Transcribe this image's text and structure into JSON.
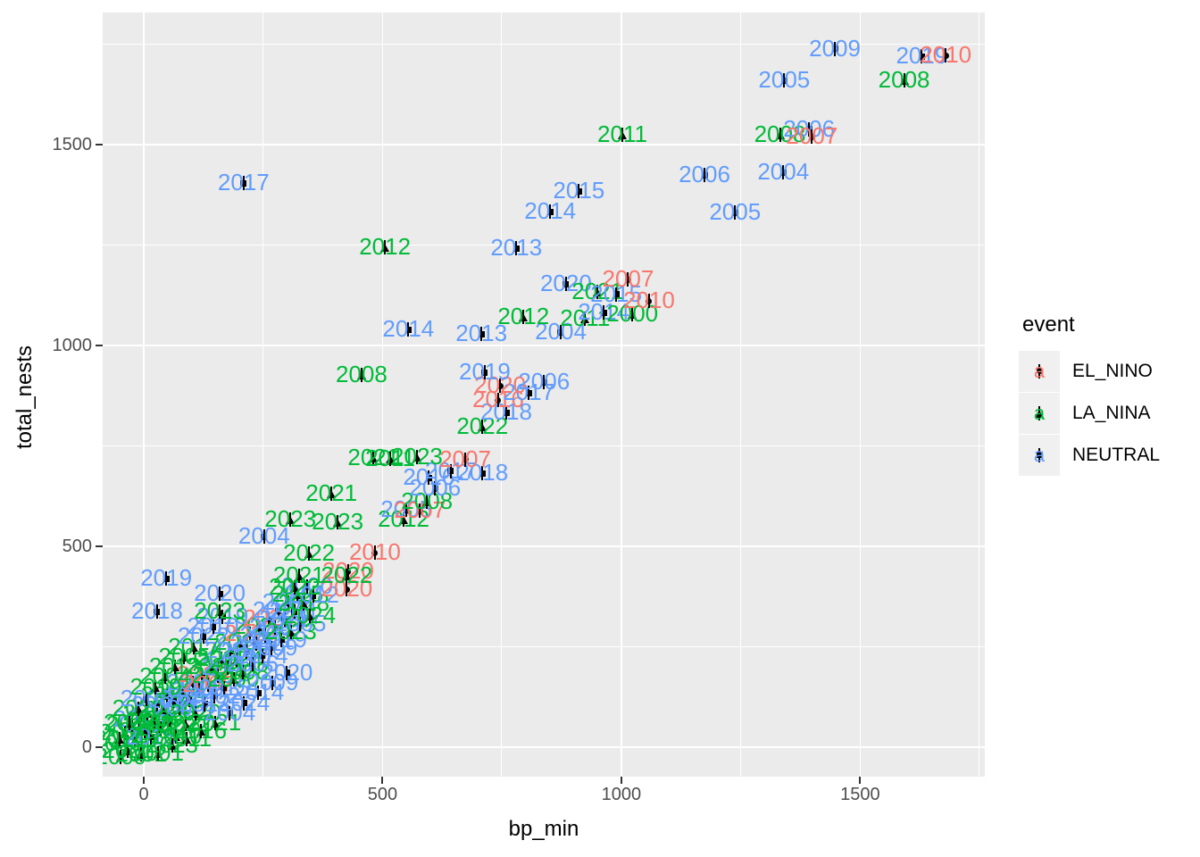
{
  "axes": {
    "x_label": "bp_min",
    "y_label": "total_nests",
    "x_tick_labels": [
      "0",
      "500",
      "1000",
      "1500"
    ],
    "y_tick_labels": [
      "0",
      "500",
      "1000",
      "1500"
    ]
  },
  "legend": {
    "title": "event",
    "key_glyph": "a",
    "items": [
      {
        "label": "EL_NINO",
        "color": "#F8766D",
        "shape": "circle"
      },
      {
        "label": "LA_NINA",
        "color": "#00BA38",
        "shape": "triangle"
      },
      {
        "label": "NEUTRAL",
        "color": "#619CFF",
        "shape": "square"
      }
    ]
  },
  "chart_data": {
    "type": "scatter",
    "title": "",
    "xlabel": "bp_min",
    "ylabel": "total_nests",
    "x_range": [
      -86,
      1761
    ],
    "y_range": [
      -73,
      1829
    ],
    "x_ticks": [
      0,
      500,
      1000,
      1500
    ],
    "x_minor_ticks": [
      250,
      750,
      1250,
      1750
    ],
    "y_ticks": [
      0,
      500,
      1000,
      1500
    ],
    "y_minor_ticks": [
      250,
      750,
      1250,
      1750
    ],
    "grid": true,
    "legend_position": "right",
    "event_colors": {
      "EL_NINO": "#F8766D",
      "LA_NINA": "#00BA38",
      "NEUTRAL": "#619CFF"
    },
    "event_shapes": {
      "EL_NINO": "circle",
      "LA_NINA": "triangle",
      "NEUTRAL": "square"
    },
    "points": [
      {
        "label": "2003",
        "event": "LA_NINA",
        "x": -55,
        "y": 10
      },
      {
        "label": "2009",
        "event": "LA_NINA",
        "x": -48,
        "y": -25
      },
      {
        "label": "2016",
        "event": "LA_NINA",
        "x": -40,
        "y": 35
      },
      {
        "label": "2021",
        "event": "LA_NINA",
        "x": -33,
        "y": -8
      },
      {
        "label": "2013",
        "event": "LA_NINA",
        "x": -25,
        "y": 55
      },
      {
        "label": "2007",
        "event": "LA_NINA",
        "x": -18,
        "y": 18
      },
      {
        "label": "2019",
        "event": "NEUTRAL",
        "x": -10,
        "y": 70
      },
      {
        "label": "2002",
        "event": "LA_NINA",
        "x": -5,
        "y": -18
      },
      {
        "label": "2023",
        "event": "LA_NINA",
        "x": 2,
        "y": 40
      },
      {
        "label": "2011",
        "event": "LA_NINA",
        "x": 8,
        "y": 85
      },
      {
        "label": "2015",
        "event": "NEUTRAL",
        "x": 15,
        "y": 25
      },
      {
        "label": "2005",
        "event": "LA_NINA",
        "x": 22,
        "y": 65
      },
      {
        "label": "2018",
        "event": "NEUTRAL",
        "x": 28,
        "y": 105
      },
      {
        "label": "2000",
        "event": "LA_NINA",
        "x": 35,
        "y": 48
      },
      {
        "label": "2024",
        "event": "LA_NINA",
        "x": 42,
        "y": 92
      },
      {
        "label": "2012",
        "event": "LA_NINA",
        "x": 48,
        "y": 130
      },
      {
        "label": "2008",
        "event": "LA_NINA",
        "x": 55,
        "y": 70
      },
      {
        "label": "2017",
        "event": "NEUTRAL",
        "x": 62,
        "y": 115
      },
      {
        "label": "2010",
        "event": "LA_NINA",
        "x": 68,
        "y": 28
      },
      {
        "label": "2006",
        "event": "NEUTRAL",
        "x": 75,
        "y": 95
      },
      {
        "label": "2001",
        "event": "LA_NINA",
        "x": 82,
        "y": 140
      },
      {
        "label": "2022",
        "event": "LA_NINA",
        "x": 88,
        "y": 58
      },
      {
        "label": "2014",
        "event": "NEUTRAL",
        "x": 95,
        "y": 118
      },
      {
        "label": "2003",
        "event": "NEUTRAL",
        "x": 102,
        "y": 160
      },
      {
        "label": "2020",
        "event": "LA_NINA",
        "x": 108,
        "y": 85
      },
      {
        "label": "2009",
        "event": "NEUTRAL",
        "x": 115,
        "y": 145
      },
      {
        "label": "2016",
        "event": "EL_NINO",
        "x": 122,
        "y": 180
      },
      {
        "label": "2013",
        "event": "NEUTRAL",
        "x": 128,
        "y": 108
      },
      {
        "label": "2007",
        "event": "EL_NINO",
        "x": 135,
        "y": 155
      },
      {
        "label": "2021",
        "event": "LA_NINA",
        "x": 142,
        "y": 200
      },
      {
        "label": "2002",
        "event": "NEUTRAL",
        "x": 148,
        "y": 128
      },
      {
        "label": "2023",
        "event": "LA_NINA",
        "x": 155,
        "y": 178
      },
      {
        "label": "2011",
        "event": "LA_NINA",
        "x": 162,
        "y": 220
      },
      {
        "label": "2015",
        "event": "NEUTRAL",
        "x": 168,
        "y": 148
      },
      {
        "label": "2005",
        "event": "NEUTRAL",
        "x": 175,
        "y": 198
      },
      {
        "label": "2018",
        "event": "NEUTRAL",
        "x": 182,
        "y": 240
      },
      {
        "label": "2000",
        "event": "LA_NINA",
        "x": 188,
        "y": 170
      },
      {
        "label": "2024",
        "event": "LA_NINA",
        "x": 195,
        "y": 218
      },
      {
        "label": "2012",
        "event": "LA_NINA",
        "x": 202,
        "y": 260
      },
      {
        "label": "2008",
        "event": "LA_NINA",
        "x": 208,
        "y": 188
      },
      {
        "label": "2017",
        "event": "NEUTRAL",
        "x": 215,
        "y": 238
      },
      {
        "label": "2010",
        "event": "EL_NINO",
        "x": 222,
        "y": 282
      },
      {
        "label": "2006",
        "event": "NEUTRAL",
        "x": 228,
        "y": 208
      },
      {
        "label": "2001",
        "event": "NEUTRAL",
        "x": 235,
        "y": 258
      },
      {
        "label": "2022",
        "event": "LA_NINA",
        "x": 242,
        "y": 300
      },
      {
        "label": "2014",
        "event": "NEUTRAL",
        "x": 248,
        "y": 228
      },
      {
        "label": "2003",
        "event": "NEUTRAL",
        "x": 255,
        "y": 278
      },
      {
        "label": "2020",
        "event": "EL_NINO",
        "x": 262,
        "y": 320
      },
      {
        "label": "2009",
        "event": "NEUTRAL",
        "x": 268,
        "y": 248
      },
      {
        "label": "2016",
        "event": "NEUTRAL",
        "x": 275,
        "y": 298
      },
      {
        "label": "2013",
        "event": "NEUTRAL",
        "x": 282,
        "y": 340
      },
      {
        "label": "2019",
        "event": "NEUTRAL",
        "x": 288,
        "y": 268
      },
      {
        "label": "2021",
        "event": "NEUTRAL",
        "x": 295,
        "y": 318
      },
      {
        "label": "2002",
        "event": "NEUTRAL",
        "x": 302,
        "y": 360
      },
      {
        "label": "2023",
        "event": "LA_NINA",
        "x": 308,
        "y": 288
      },
      {
        "label": "2011",
        "event": "NEUTRAL",
        "x": 315,
        "y": 338
      },
      {
        "label": "2015",
        "event": "LA_NINA",
        "x": 322,
        "y": 380
      },
      {
        "label": "2005",
        "event": "NEUTRAL",
        "x": 328,
        "y": 308
      },
      {
        "label": "2018",
        "event": "LA_NINA",
        "x": 335,
        "y": 358
      },
      {
        "label": "2000",
        "event": "NEUTRAL",
        "x": 342,
        "y": 400
      },
      {
        "label": "2024",
        "event": "LA_NINA",
        "x": 348,
        "y": 328
      },
      {
        "label": "2012",
        "event": "NEUTRAL",
        "x": 355,
        "y": 378
      },
      {
        "label": "2014",
        "event": "LA_NINA",
        "x": -50,
        "y": 20
      },
      {
        "label": "2006",
        "event": "LA_NINA",
        "x": -30,
        "y": 60
      },
      {
        "label": "2020",
        "event": "LA_NINA",
        "x": -12,
        "y": 95
      },
      {
        "label": "2008",
        "event": "NEUTRAL",
        "x": 5,
        "y": 120
      },
      {
        "label": "2019",
        "event": "LA_NINA",
        "x": 25,
        "y": 150
      },
      {
        "label": "2004",
        "event": "LA_NINA",
        "x": 45,
        "y": 175
      },
      {
        "label": "2013",
        "event": "LA_NINA",
        "x": 65,
        "y": 200
      },
      {
        "label": "2005",
        "event": "LA_NINA",
        "x": 85,
        "y": 225
      },
      {
        "label": "2017",
        "event": "LA_NINA",
        "x": 105,
        "y": 250
      },
      {
        "label": "2022",
        "event": "NEUTRAL",
        "x": 125,
        "y": 275
      },
      {
        "label": "2010",
        "event": "NEUTRAL",
        "x": 145,
        "y": 300
      },
      {
        "label": "2019",
        "event": "NEUTRAL",
        "x": 165,
        "y": 325
      },
      {
        "label": "2001",
        "event": "LA_NINA",
        "x": 30,
        "y": -15
      },
      {
        "label": "2023",
        "event": "LA_NINA",
        "x": 60,
        "y": 5
      },
      {
        "label": "2011",
        "event": "LA_NINA",
        "x": 90,
        "y": 20
      },
      {
        "label": "2016",
        "event": "LA_NINA",
        "x": 120,
        "y": 40
      },
      {
        "label": "2021",
        "event": "LA_NINA",
        "x": 150,
        "y": 60
      },
      {
        "label": "2004",
        "event": "NEUTRAL",
        "x": 180,
        "y": 85
      },
      {
        "label": "2024",
        "event": "NEUTRAL",
        "x": 210,
        "y": 110
      },
      {
        "label": "2014",
        "event": "NEUTRAL",
        "x": 240,
        "y": 135
      },
      {
        "label": "2009",
        "event": "NEUTRAL",
        "x": 270,
        "y": 160
      },
      {
        "label": "2020",
        "event": "NEUTRAL",
        "x": 300,
        "y": 185
      },
      {
        "label": "2019",
        "event": "NEUTRAL",
        "x": 47,
        "y": 420
      },
      {
        "label": "2018",
        "event": "NEUTRAL",
        "x": 28,
        "y": 338
      },
      {
        "label": "2023",
        "event": "LA_NINA",
        "x": 159,
        "y": 338
      },
      {
        "label": "2020",
        "event": "NEUTRAL",
        "x": 159,
        "y": 382
      },
      {
        "label": "2022",
        "event": "LA_NINA",
        "x": 316,
        "y": 398
      },
      {
        "label": "2020",
        "event": "EL_NINO",
        "x": 425,
        "y": 393
      },
      {
        "label": "2021",
        "event": "LA_NINA",
        "x": 325,
        "y": 427
      },
      {
        "label": "2020",
        "event": "EL_NINO",
        "x": 428,
        "y": 438
      },
      {
        "label": "2023",
        "event": "LA_NINA",
        "x": 307,
        "y": 567
      },
      {
        "label": "2004",
        "event": "NEUTRAL",
        "x": 252,
        "y": 524
      },
      {
        "label": "2022",
        "event": "LA_NINA",
        "x": 346,
        "y": 482
      },
      {
        "label": "2010",
        "event": "EL_NINO",
        "x": 484,
        "y": 484
      },
      {
        "label": "2022",
        "event": "LA_NINA",
        "x": 425,
        "y": 427
      },
      {
        "label": "2021",
        "event": "LA_NINA",
        "x": 393,
        "y": 631
      },
      {
        "label": "2023",
        "event": "LA_NINA",
        "x": 406,
        "y": 560
      },
      {
        "label": "2012",
        "event": "LA_NINA",
        "x": 544,
        "y": 567
      },
      {
        "label": "2005",
        "event": "NEUTRAL",
        "x": 550,
        "y": 591
      },
      {
        "label": "2007",
        "event": "EL_NINO",
        "x": 578,
        "y": 589
      },
      {
        "label": "2008",
        "event": "LA_NINA",
        "x": 593,
        "y": 611
      },
      {
        "label": "2006",
        "event": "NEUTRAL",
        "x": 610,
        "y": 644
      },
      {
        "label": "2016",
        "event": "NEUTRAL",
        "x": 597,
        "y": 671
      },
      {
        "label": "2017",
        "event": "NEUTRAL",
        "x": 643,
        "y": 687
      },
      {
        "label": "2018",
        "event": "NEUTRAL",
        "x": 709,
        "y": 682
      },
      {
        "label": "2021",
        "event": "LA_NINA",
        "x": 481,
        "y": 720
      },
      {
        "label": "2011",
        "event": "LA_NINA",
        "x": 516,
        "y": 718
      },
      {
        "label": "2023",
        "event": "LA_NINA",
        "x": 572,
        "y": 722
      },
      {
        "label": "2007",
        "event": "EL_NINO",
        "x": 673,
        "y": 716
      },
      {
        "label": "2022",
        "event": "LA_NINA",
        "x": 709,
        "y": 798
      },
      {
        "label": "2018",
        "event": "NEUTRAL",
        "x": 759,
        "y": 833
      },
      {
        "label": "2016",
        "event": "EL_NINO",
        "x": 742,
        "y": 864
      },
      {
        "label": "2017",
        "event": "NEUTRAL",
        "x": 806,
        "y": 882
      },
      {
        "label": "2020",
        "event": "EL_NINO",
        "x": 746,
        "y": 900
      },
      {
        "label": "2006",
        "event": "NEUTRAL",
        "x": 838,
        "y": 909
      },
      {
        "label": "2019",
        "event": "NEUTRAL",
        "x": 714,
        "y": 933
      },
      {
        "label": "2008",
        "event": "LA_NINA",
        "x": 456,
        "y": 927
      },
      {
        "label": "2014",
        "event": "NEUTRAL",
        "x": 554,
        "y": 1040
      },
      {
        "label": "2013",
        "event": "NEUTRAL",
        "x": 707,
        "y": 1029
      },
      {
        "label": "2004",
        "event": "NEUTRAL",
        "x": 873,
        "y": 1033
      },
      {
        "label": "2011",
        "event": "LA_NINA",
        "x": 924,
        "y": 1067
      },
      {
        "label": "2014",
        "event": "NEUTRAL",
        "x": 963,
        "y": 1082
      },
      {
        "label": "2000",
        "event": "LA_NINA",
        "x": 1023,
        "y": 1078
      },
      {
        "label": "2012",
        "event": "LA_NINA",
        "x": 795,
        "y": 1071
      },
      {
        "label": "2020",
        "event": "NEUTRAL",
        "x": 884,
        "y": 1153
      },
      {
        "label": "2021",
        "event": "LA_NINA",
        "x": 950,
        "y": 1133
      },
      {
        "label": "2015",
        "event": "NEUTRAL",
        "x": 989,
        "y": 1127
      },
      {
        "label": "2007",
        "event": "EL_NINO",
        "x": 1014,
        "y": 1164
      },
      {
        "label": "2010",
        "event": "EL_NINO",
        "x": 1058,
        "y": 1111
      },
      {
        "label": "2012",
        "event": "LA_NINA",
        "x": 505,
        "y": 1244
      },
      {
        "label": "2013",
        "event": "NEUTRAL",
        "x": 780,
        "y": 1242
      },
      {
        "label": "2017",
        "event": "NEUTRAL",
        "x": 209,
        "y": 1404
      },
      {
        "label": "2014",
        "event": "NEUTRAL",
        "x": 851,
        "y": 1333
      },
      {
        "label": "2015",
        "event": "NEUTRAL",
        "x": 911,
        "y": 1384
      },
      {
        "label": "2005",
        "event": "NEUTRAL",
        "x": 1238,
        "y": 1331
      },
      {
        "label": "2006",
        "event": "NEUTRAL",
        "x": 1174,
        "y": 1424
      },
      {
        "label": "2004",
        "event": "NEUTRAL",
        "x": 1339,
        "y": 1431
      },
      {
        "label": "2011",
        "event": "LA_NINA",
        "x": 1002,
        "y": 1524
      },
      {
        "label": "2008",
        "event": "LA_NINA",
        "x": 1332,
        "y": 1524
      },
      {
        "label": "2006",
        "event": "NEUTRAL",
        "x": 1393,
        "y": 1538
      },
      {
        "label": "2007",
        "event": "EL_NINO",
        "x": 1399,
        "y": 1520
      },
      {
        "label": "2005",
        "event": "NEUTRAL",
        "x": 1341,
        "y": 1660
      },
      {
        "label": "2008",
        "event": "LA_NINA",
        "x": 1592,
        "y": 1660
      },
      {
        "label": "2009",
        "event": "NEUTRAL",
        "x": 1447,
        "y": 1738
      },
      {
        "label": "2019",
        "event": "NEUTRAL",
        "x": 1629,
        "y": 1720
      },
      {
        "label": "2010",
        "event": "EL_NINO",
        "x": 1679,
        "y": 1722
      }
    ]
  }
}
